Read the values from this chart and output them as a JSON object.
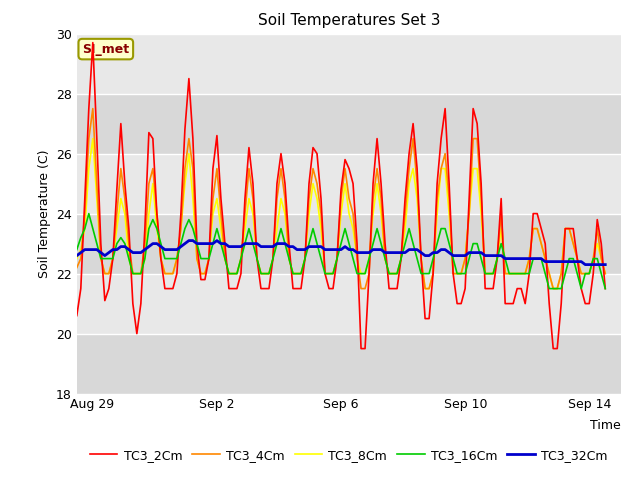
{
  "title": "Soil Temperatures Set 3",
  "xlabel": "Time",
  "ylabel": "Soil Temperature (C)",
  "ylim": [
    18,
    30
  ],
  "xlim": [
    0,
    17.5
  ],
  "annotation": "SI_met",
  "bg_color": "#e8e8e8",
  "fig_bg": "#ffffff",
  "band_colors": [
    "#e0e0e0",
    "#d0d0d0"
  ],
  "series_colors": {
    "TC3_2Cm": "#ff0000",
    "TC3_4Cm": "#ff8800",
    "TC3_8Cm": "#ffff00",
    "TC3_16Cm": "#00cc00",
    "TC3_32Cm": "#0000cc"
  },
  "xtick_labels": [
    "Aug 29",
    "Sep 2",
    "Sep 6",
    "Sep 10",
    "Sep 14"
  ],
  "xtick_positions": [
    0.5,
    4.5,
    8.5,
    12.5,
    16.5
  ],
  "yticks": [
    18,
    20,
    22,
    24,
    26,
    28,
    30
  ],
  "tc3_2cm": [
    20.6,
    21.5,
    24.5,
    27.5,
    29.7,
    26.5,
    23.0,
    21.1,
    21.5,
    22.5,
    24.8,
    27.0,
    25.0,
    23.5,
    21.0,
    20.0,
    21.0,
    23.5,
    26.7,
    26.5,
    24.0,
    22.5,
    21.5,
    21.5,
    21.5,
    22.0,
    24.0,
    26.8,
    28.5,
    26.5,
    23.0,
    21.8,
    21.8,
    22.5,
    25.5,
    26.6,
    24.5,
    23.0,
    21.5,
    21.5,
    21.5,
    22.0,
    24.5,
    26.2,
    25.0,
    22.5,
    21.5,
    21.5,
    21.5,
    22.5,
    25.0,
    26.0,
    25.0,
    23.0,
    21.5,
    21.5,
    21.5,
    22.5,
    25.0,
    26.2,
    26.0,
    24.5,
    22.0,
    21.5,
    21.5,
    22.5,
    24.8,
    25.8,
    25.5,
    25.0,
    23.0,
    19.5,
    19.5,
    22.0,
    25.0,
    26.5,
    25.0,
    23.0,
    21.5,
    21.5,
    21.5,
    22.5,
    24.5,
    26.0,
    27.0,
    25.5,
    22.5,
    20.5,
    20.5,
    22.0,
    25.0,
    26.5,
    27.5,
    25.0,
    22.0,
    21.0,
    21.0,
    21.5,
    24.5,
    27.5,
    27.0,
    25.0,
    21.5,
    21.5,
    21.5,
    22.5,
    24.5,
    21.0,
    21.0,
    21.0,
    21.5,
    21.5,
    21.0,
    22.0,
    24.0,
    24.0,
    23.5,
    23.0,
    21.0,
    19.5,
    19.5,
    21.0,
    23.5,
    23.5,
    23.5,
    22.5,
    21.5,
    21.0,
    21.0,
    22.0,
    23.8,
    23.0,
    21.5
  ],
  "tc3_4cm": [
    22.2,
    22.5,
    24.0,
    26.5,
    27.5,
    25.0,
    22.5,
    22.0,
    22.0,
    22.5,
    24.0,
    25.5,
    24.5,
    23.0,
    22.0,
    22.0,
    22.0,
    23.0,
    25.0,
    25.5,
    24.0,
    22.5,
    22.0,
    22.0,
    22.0,
    22.5,
    23.5,
    25.5,
    26.5,
    25.5,
    22.5,
    22.0,
    22.0,
    22.5,
    24.5,
    25.5,
    24.0,
    22.5,
    22.0,
    22.0,
    22.0,
    22.5,
    24.0,
    25.5,
    24.5,
    22.5,
    22.0,
    22.0,
    22.0,
    22.5,
    24.5,
    25.5,
    24.5,
    22.5,
    22.0,
    22.0,
    22.0,
    22.5,
    24.5,
    25.5,
    25.0,
    24.0,
    22.0,
    22.0,
    22.0,
    22.5,
    24.5,
    25.5,
    24.5,
    24.0,
    22.5,
    21.5,
    21.5,
    22.0,
    24.5,
    25.5,
    24.5,
    22.5,
    22.0,
    22.0,
    22.0,
    22.5,
    24.0,
    25.5,
    26.5,
    25.0,
    22.5,
    21.5,
    21.5,
    22.0,
    24.5,
    25.5,
    26.0,
    24.5,
    22.0,
    22.0,
    22.0,
    22.5,
    24.0,
    26.5,
    26.5,
    24.5,
    22.0,
    22.0,
    22.0,
    22.5,
    24.0,
    22.0,
    22.0,
    22.0,
    22.0,
    22.0,
    22.0,
    22.5,
    23.5,
    23.5,
    23.0,
    22.5,
    22.0,
    21.5,
    21.5,
    22.0,
    23.5,
    23.5,
    23.0,
    22.5,
    22.0,
    22.0,
    22.0,
    22.5,
    23.5,
    22.5,
    22.0
  ],
  "tc3_8cm": [
    22.5,
    22.8,
    23.5,
    25.5,
    26.5,
    24.5,
    22.5,
    22.0,
    22.0,
    22.5,
    23.5,
    24.5,
    24.0,
    22.5,
    22.0,
    22.0,
    22.0,
    22.5,
    24.0,
    25.0,
    23.5,
    22.5,
    22.0,
    22.0,
    22.0,
    22.5,
    23.5,
    25.0,
    26.0,
    24.5,
    22.5,
    22.0,
    22.0,
    22.5,
    24.0,
    24.5,
    23.5,
    22.5,
    22.0,
    22.0,
    22.0,
    22.5,
    23.5,
    24.5,
    24.0,
    22.5,
    22.0,
    22.0,
    22.0,
    22.5,
    23.5,
    24.5,
    24.0,
    22.5,
    22.0,
    22.0,
    22.0,
    22.5,
    24.0,
    25.0,
    24.5,
    23.5,
    22.0,
    22.0,
    22.0,
    22.5,
    24.0,
    25.0,
    24.0,
    23.5,
    22.5,
    22.0,
    22.0,
    22.5,
    24.0,
    25.0,
    24.0,
    22.5,
    22.0,
    22.0,
    22.0,
    22.5,
    23.5,
    25.0,
    25.5,
    24.5,
    22.5,
    21.5,
    21.5,
    22.0,
    24.0,
    25.5,
    25.5,
    24.0,
    22.0,
    22.0,
    22.0,
    22.5,
    24.0,
    25.5,
    25.5,
    24.0,
    22.0,
    22.0,
    22.0,
    22.5,
    23.5,
    22.0,
    22.0,
    22.0,
    22.0,
    22.0,
    22.0,
    22.5,
    23.5,
    23.5,
    23.0,
    22.5,
    22.0,
    21.5,
    21.5,
    22.0,
    23.5,
    23.5,
    23.0,
    22.5,
    22.0,
    22.0,
    22.0,
    22.5,
    23.0,
    22.5,
    22.0
  ],
  "tc3_16cm": [
    22.8,
    23.2,
    23.5,
    24.0,
    23.5,
    23.0,
    22.5,
    22.5,
    22.5,
    22.5,
    23.0,
    23.2,
    23.0,
    22.5,
    22.0,
    22.0,
    22.0,
    22.5,
    23.5,
    23.8,
    23.5,
    23.0,
    22.5,
    22.5,
    22.5,
    22.5,
    23.0,
    23.5,
    23.8,
    23.5,
    23.0,
    22.5,
    22.5,
    22.5,
    23.0,
    23.5,
    23.0,
    22.5,
    22.0,
    22.0,
    22.0,
    22.5,
    23.0,
    23.5,
    23.0,
    22.5,
    22.0,
    22.0,
    22.0,
    22.5,
    23.0,
    23.5,
    23.0,
    22.5,
    22.0,
    22.0,
    22.0,
    22.5,
    23.0,
    23.5,
    23.0,
    22.5,
    22.0,
    22.0,
    22.0,
    22.5,
    23.0,
    23.5,
    23.0,
    22.5,
    22.0,
    22.0,
    22.0,
    22.5,
    23.0,
    23.5,
    23.0,
    22.5,
    22.0,
    22.0,
    22.0,
    22.5,
    23.0,
    23.5,
    23.0,
    22.5,
    22.0,
    22.0,
    22.0,
    22.5,
    23.0,
    23.5,
    23.5,
    23.0,
    22.5,
    22.0,
    22.0,
    22.0,
    22.5,
    23.0,
    23.0,
    22.5,
    22.0,
    22.0,
    22.0,
    22.5,
    23.0,
    22.5,
    22.0,
    22.0,
    22.0,
    22.0,
    22.0,
    22.0,
    22.5,
    22.5,
    22.5,
    22.0,
    21.5,
    21.5,
    21.5,
    21.5,
    22.0,
    22.5,
    22.5,
    22.0,
    21.5,
    22.0,
    22.0,
    22.5,
    22.5,
    22.0,
    21.5
  ],
  "tc3_32cm": [
    22.6,
    22.7,
    22.8,
    22.8,
    22.8,
    22.8,
    22.7,
    22.6,
    22.7,
    22.8,
    22.8,
    22.9,
    22.9,
    22.8,
    22.7,
    22.7,
    22.7,
    22.8,
    22.9,
    23.0,
    23.0,
    22.9,
    22.8,
    22.8,
    22.8,
    22.8,
    22.9,
    23.0,
    23.1,
    23.1,
    23.0,
    23.0,
    23.0,
    23.0,
    23.0,
    23.1,
    23.0,
    23.0,
    22.9,
    22.9,
    22.9,
    22.9,
    23.0,
    23.0,
    23.0,
    23.0,
    22.9,
    22.9,
    22.9,
    22.9,
    23.0,
    23.0,
    23.0,
    22.9,
    22.9,
    22.8,
    22.8,
    22.8,
    22.9,
    22.9,
    22.9,
    22.9,
    22.8,
    22.8,
    22.8,
    22.8,
    22.8,
    22.9,
    22.8,
    22.8,
    22.7,
    22.7,
    22.7,
    22.7,
    22.8,
    22.8,
    22.8,
    22.7,
    22.7,
    22.7,
    22.7,
    22.7,
    22.7,
    22.8,
    22.8,
    22.8,
    22.7,
    22.6,
    22.6,
    22.7,
    22.7,
    22.8,
    22.8,
    22.7,
    22.6,
    22.6,
    22.6,
    22.6,
    22.7,
    22.7,
    22.7,
    22.7,
    22.6,
    22.6,
    22.6,
    22.6,
    22.6,
    22.5,
    22.5,
    22.5,
    22.5,
    22.5,
    22.5,
    22.5,
    22.5,
    22.5,
    22.5,
    22.4,
    22.4,
    22.4,
    22.4,
    22.4,
    22.4,
    22.4,
    22.4,
    22.4,
    22.4,
    22.3,
    22.3,
    22.3,
    22.3,
    22.3,
    22.3
  ]
}
